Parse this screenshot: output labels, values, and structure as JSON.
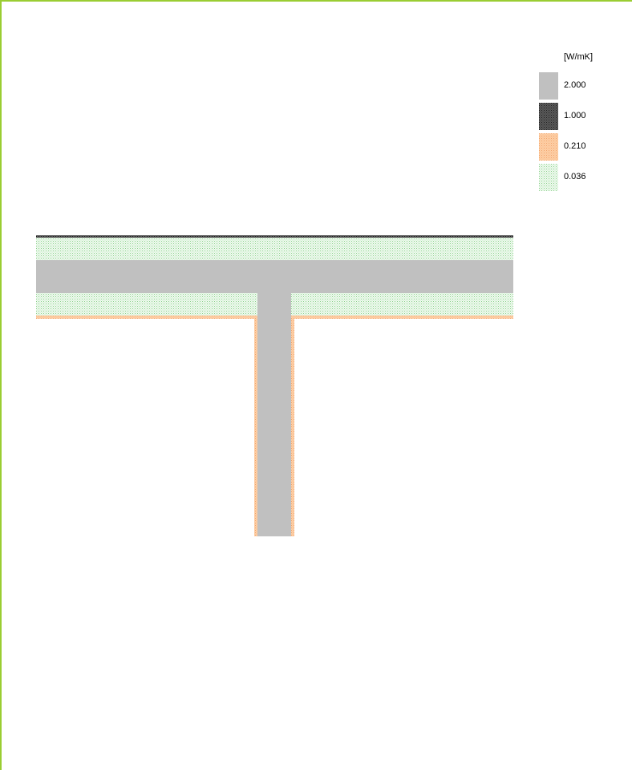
{
  "legend": {
    "unit": "[W/mK]",
    "items": [
      {
        "label": "2.000",
        "color": "#c0c0c0",
        "pattern": "solid"
      },
      {
        "label": "1.000",
        "color": "#4a4a4a",
        "pattern": "dark-dots"
      },
      {
        "label": "0.210",
        "color": "#fdbf91",
        "pattern": "orange-dots"
      },
      {
        "label": "0.036",
        "color": "#d8f0d8",
        "pattern": "green-dots"
      }
    ]
  },
  "colors": {
    "frame": "#9acd32",
    "concrete": "#c0c0c0",
    "membrane": "#4a4a4a",
    "plaster": "#fdbf91",
    "insulation": "#d8f0d8"
  }
}
